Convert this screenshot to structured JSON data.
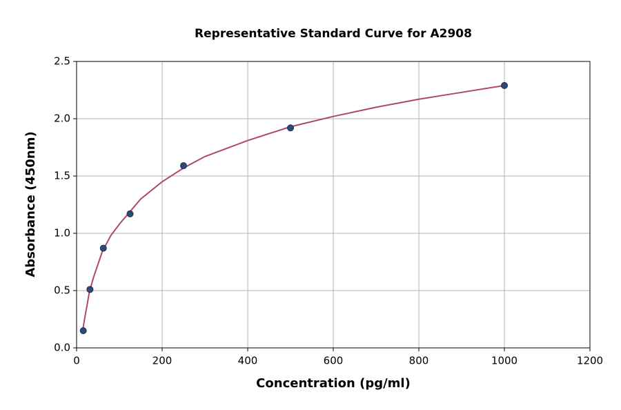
{
  "chart_data": {
    "type": "scatter",
    "title": "Representative Standard Curve for A2908",
    "xlabel": "Concentration (pg/ml)",
    "ylabel": "Absorbance (450nm)",
    "xlim": [
      0,
      1200
    ],
    "xticks": [
      0,
      200,
      400,
      600,
      800,
      1000,
      1200
    ],
    "ylim": [
      0,
      2.5
    ],
    "yticks": [
      {
        "value": 0,
        "label": "0.0"
      },
      {
        "value": 0.5,
        "label": "0.5"
      },
      {
        "value": 1,
        "label": "1.0"
      },
      {
        "value": 1.5,
        "label": "1.5"
      },
      {
        "value": 2,
        "label": "2.0"
      },
      {
        "value": 2.5,
        "label": "2.5"
      }
    ],
    "grid": true,
    "series": [
      {
        "type": "line",
        "color": "#b0476a",
        "x": [
          15,
          20,
          30,
          40,
          60,
          80,
          100,
          150,
          200,
          250,
          300,
          400,
          500,
          600,
          700,
          800,
          900,
          1000
        ],
        "values": [
          0.17,
          0.28,
          0.49,
          0.62,
          0.84,
          0.98,
          1.08,
          1.3,
          1.45,
          1.57,
          1.67,
          1.81,
          1.93,
          2.02,
          2.1,
          2.17,
          2.23,
          2.29
        ]
      },
      {
        "type": "scatter",
        "color": "#2e4a78",
        "x": [
          15.625,
          31.25,
          62.5,
          125,
          250,
          500,
          1000
        ],
        "values": [
          0.15,
          0.51,
          0.87,
          1.17,
          1.59,
          1.92,
          2.29
        ]
      }
    ]
  }
}
